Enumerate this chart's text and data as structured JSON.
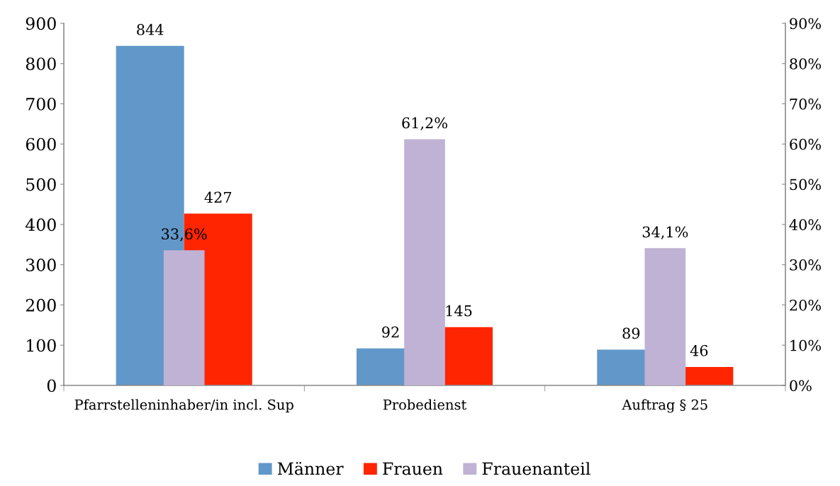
{
  "chart_data": {
    "type": "bar",
    "categories": [
      "Pfarrstelleninhaber/in incl. Sup",
      "Probedienst",
      "Auftrag § 25"
    ],
    "series": [
      {
        "name": "Männer",
        "color": "#6198c9",
        "values": [
          844,
          92,
          89
        ],
        "value_labels": [
          "844",
          "92",
          "89"
        ]
      },
      {
        "name": "Frauen",
        "color": "#ff2500",
        "values": [
          427,
          145,
          46
        ],
        "value_labels": [
          "427",
          "145",
          "46"
        ]
      },
      {
        "name": "Frauenanteil",
        "color": "#c0b2d4",
        "axis": "y2",
        "values": [
          33.6,
          61.2,
          34.1
        ],
        "value_labels": [
          "33,6%",
          "61,2%",
          "34,1%"
        ]
      }
    ],
    "ylim": [
      0,
      900
    ],
    "yticks": [
      0,
      100,
      200,
      300,
      400,
      500,
      600,
      700,
      800,
      900
    ],
    "y2lim": [
      0,
      90
    ],
    "y2ticks": [
      {
        "value": 0,
        "label": "0%"
      },
      {
        "value": 10,
        "label": "10%"
      },
      {
        "value": 20,
        "label": "20%"
      },
      {
        "value": 30,
        "label": "30%"
      },
      {
        "value": 40,
        "label": "40%"
      },
      {
        "value": 50,
        "label": "50%"
      },
      {
        "value": 60,
        "label": "60%"
      },
      {
        "value": 70,
        "label": "70%"
      },
      {
        "value": 80,
        "label": "80%"
      },
      {
        "value": 90,
        "label": "90%"
      }
    ],
    "grid": false,
    "legend": "bottom"
  }
}
